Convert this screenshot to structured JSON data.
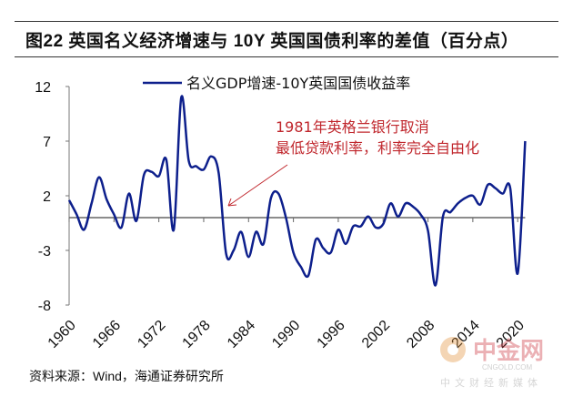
{
  "title": "图22 英国名义经济增速与 10Y 英国国债利率的差值（百分点）",
  "source": "资料来源：Wind，海通证券研究所",
  "watermark": {
    "name": "中金网",
    "url": "CNGOLD.COM",
    "slogan": "中文财经新媒体"
  },
  "chart_data": {
    "type": "line",
    "title": "图22 英国名义经济增速与 10Y 英国国债利率的差值（百分点）",
    "xlabel": "",
    "ylabel": "",
    "ylim": [
      -8,
      12
    ],
    "yticks": [
      "12",
      "7",
      "2",
      "-3",
      "-8"
    ],
    "ytick_values": [
      12,
      7,
      2,
      -3,
      -8
    ],
    "xticks": [
      "1960",
      "1966",
      "1972",
      "1978",
      "1984",
      "1990",
      "1996",
      "2002",
      "2008",
      "2014",
      "2020"
    ],
    "xlim": [
      1960,
      2021
    ],
    "legend_placement": "top-center",
    "annotation": {
      "line1": "1981年英格兰银行取消",
      "line2": "最低贷款利率，利率完全自由化",
      "color": "#c0272d",
      "target_year": 1981
    },
    "series": [
      {
        "name": "名义GDP增速-10Y英国国债收益率",
        "color": "#0d1f8c",
        "x": [
          1960,
          1961,
          1962,
          1963,
          1964,
          1965,
          1966,
          1967,
          1968,
          1969,
          1970,
          1971,
          1972,
          1973,
          1974,
          1975,
          1976,
          1977,
          1978,
          1979,
          1980,
          1981,
          1982,
          1983,
          1984,
          1985,
          1986,
          1987,
          1988,
          1989,
          1990,
          1991,
          1992,
          1993,
          1994,
          1995,
          1996,
          1997,
          1998,
          1999,
          2000,
          2001,
          2002,
          2003,
          2004,
          2005,
          2006,
          2007,
          2008,
          2009,
          2010,
          2011,
          2012,
          2013,
          2014,
          2015,
          2016,
          2017,
          2018,
          2019,
          2020,
          2021
        ],
        "values": [
          1.6,
          0.3,
          -1.1,
          1.3,
          3.7,
          1.7,
          0.3,
          -0.9,
          2.2,
          -0.3,
          3.9,
          4.2,
          3.8,
          5.3,
          -1.1,
          11.0,
          5.2,
          4.7,
          4.4,
          5.6,
          4.1,
          -3.3,
          -3.0,
          -1.3,
          -3.6,
          -1.3,
          -2.4,
          1.8,
          2.2,
          0.0,
          -3.2,
          -4.5,
          -5.3,
          -2.0,
          -2.8,
          -3.2,
          -1.1,
          -2.4,
          -0.8,
          -0.8,
          0.1,
          -0.9,
          -0.6,
          1.3,
          0.1,
          1.3,
          1.0,
          0.3,
          -1.2,
          -6.2,
          0.1,
          0.5,
          1.3,
          1.8,
          2.0,
          1.2,
          3.0,
          2.7,
          2.2,
          2.7,
          -5.1,
          7.0
        ]
      }
    ]
  }
}
